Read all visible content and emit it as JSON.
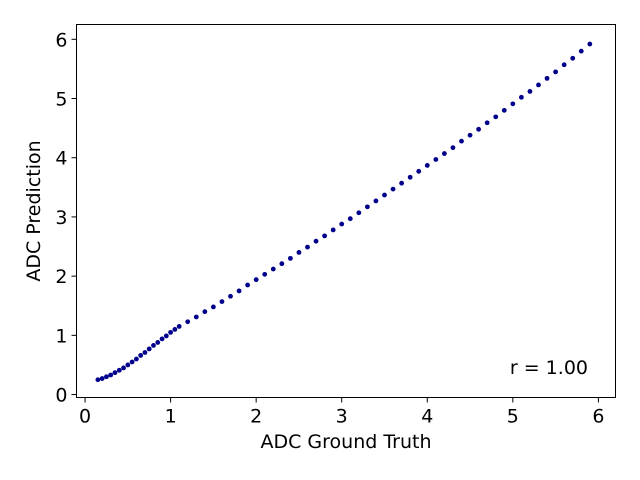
{
  "chart_data": {
    "type": "scatter",
    "title": "",
    "xlabel": "ADC Ground Truth",
    "ylabel": "ADC Prediction",
    "xlim": [
      -0.1,
      6.2
    ],
    "ylim": [
      -0.05,
      6.25
    ],
    "xticks": [
      "0",
      "1",
      "2",
      "3",
      "4",
      "5",
      "6"
    ],
    "yticks": [
      "0",
      "1",
      "2",
      "3",
      "4",
      "5",
      "6"
    ],
    "annotation": "r = 1.00",
    "grid": false,
    "marker_color": "#00008b",
    "series": [
      {
        "points": [
          [
            0.15,
            0.25
          ],
          [
            0.2,
            0.27
          ],
          [
            0.25,
            0.3
          ],
          [
            0.3,
            0.33
          ],
          [
            0.35,
            0.37
          ],
          [
            0.4,
            0.41
          ],
          [
            0.45,
            0.45
          ],
          [
            0.5,
            0.5
          ],
          [
            0.55,
            0.55
          ],
          [
            0.6,
            0.6
          ],
          [
            0.65,
            0.66
          ],
          [
            0.7,
            0.71
          ],
          [
            0.75,
            0.77
          ],
          [
            0.8,
            0.83
          ],
          [
            0.85,
            0.88
          ],
          [
            0.9,
            0.94
          ],
          [
            0.95,
            0.99
          ],
          [
            1.0,
            1.05
          ],
          [
            1.05,
            1.1
          ],
          [
            1.1,
            1.15
          ],
          [
            1.2,
            1.23
          ],
          [
            1.3,
            1.31
          ],
          [
            1.4,
            1.4
          ],
          [
            1.5,
            1.48
          ],
          [
            1.6,
            1.57
          ],
          [
            1.7,
            1.66
          ],
          [
            1.8,
            1.75
          ],
          [
            1.9,
            1.85
          ],
          [
            2.0,
            1.94
          ],
          [
            2.1,
            2.03
          ],
          [
            2.2,
            2.12
          ],
          [
            2.3,
            2.21
          ],
          [
            2.4,
            2.3
          ],
          [
            2.5,
            2.4
          ],
          [
            2.6,
            2.49
          ],
          [
            2.7,
            2.59
          ],
          [
            2.8,
            2.68
          ],
          [
            2.9,
            2.78
          ],
          [
            3.0,
            2.88
          ],
          [
            3.1,
            2.97
          ],
          [
            3.2,
            3.07
          ],
          [
            3.3,
            3.17
          ],
          [
            3.4,
            3.27
          ],
          [
            3.5,
            3.37
          ],
          [
            3.6,
            3.47
          ],
          [
            3.7,
            3.57
          ],
          [
            3.8,
            3.67
          ],
          [
            3.9,
            3.77
          ],
          [
            4.0,
            3.87
          ],
          [
            4.1,
            3.97
          ],
          [
            4.2,
            4.07
          ],
          [
            4.3,
            4.17
          ],
          [
            4.4,
            4.28
          ],
          [
            4.5,
            4.38
          ],
          [
            4.6,
            4.48
          ],
          [
            4.7,
            4.59
          ],
          [
            4.8,
            4.69
          ],
          [
            4.9,
            4.8
          ],
          [
            5.0,
            4.91
          ],
          [
            5.1,
            5.02
          ],
          [
            5.2,
            5.12
          ],
          [
            5.3,
            5.23
          ],
          [
            5.4,
            5.34
          ],
          [
            5.5,
            5.45
          ],
          [
            5.6,
            5.57
          ],
          [
            5.7,
            5.68
          ],
          [
            5.8,
            5.8
          ],
          [
            5.9,
            5.92
          ]
        ]
      }
    ]
  }
}
